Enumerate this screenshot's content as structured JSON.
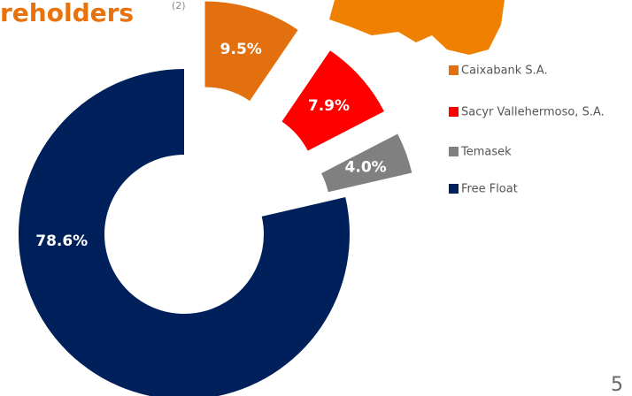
{
  "chart_data": {
    "type": "donut",
    "title": "reholders",
    "title_superscript": "(2)",
    "page_number": "5",
    "categories": [
      "Caixabank S.A.",
      "Sacyr Vallehermoso, S.A.",
      "Temasek",
      "Free Float"
    ],
    "values": [
      9.5,
      7.9,
      4.0,
      78.6
    ],
    "value_labels": [
      "9.5%",
      "7.9%",
      "4.0%",
      "78.6%"
    ],
    "colors": [
      "#e2700f",
      "#ff0000",
      "#808080",
      "#00205b"
    ],
    "legend": "right"
  }
}
